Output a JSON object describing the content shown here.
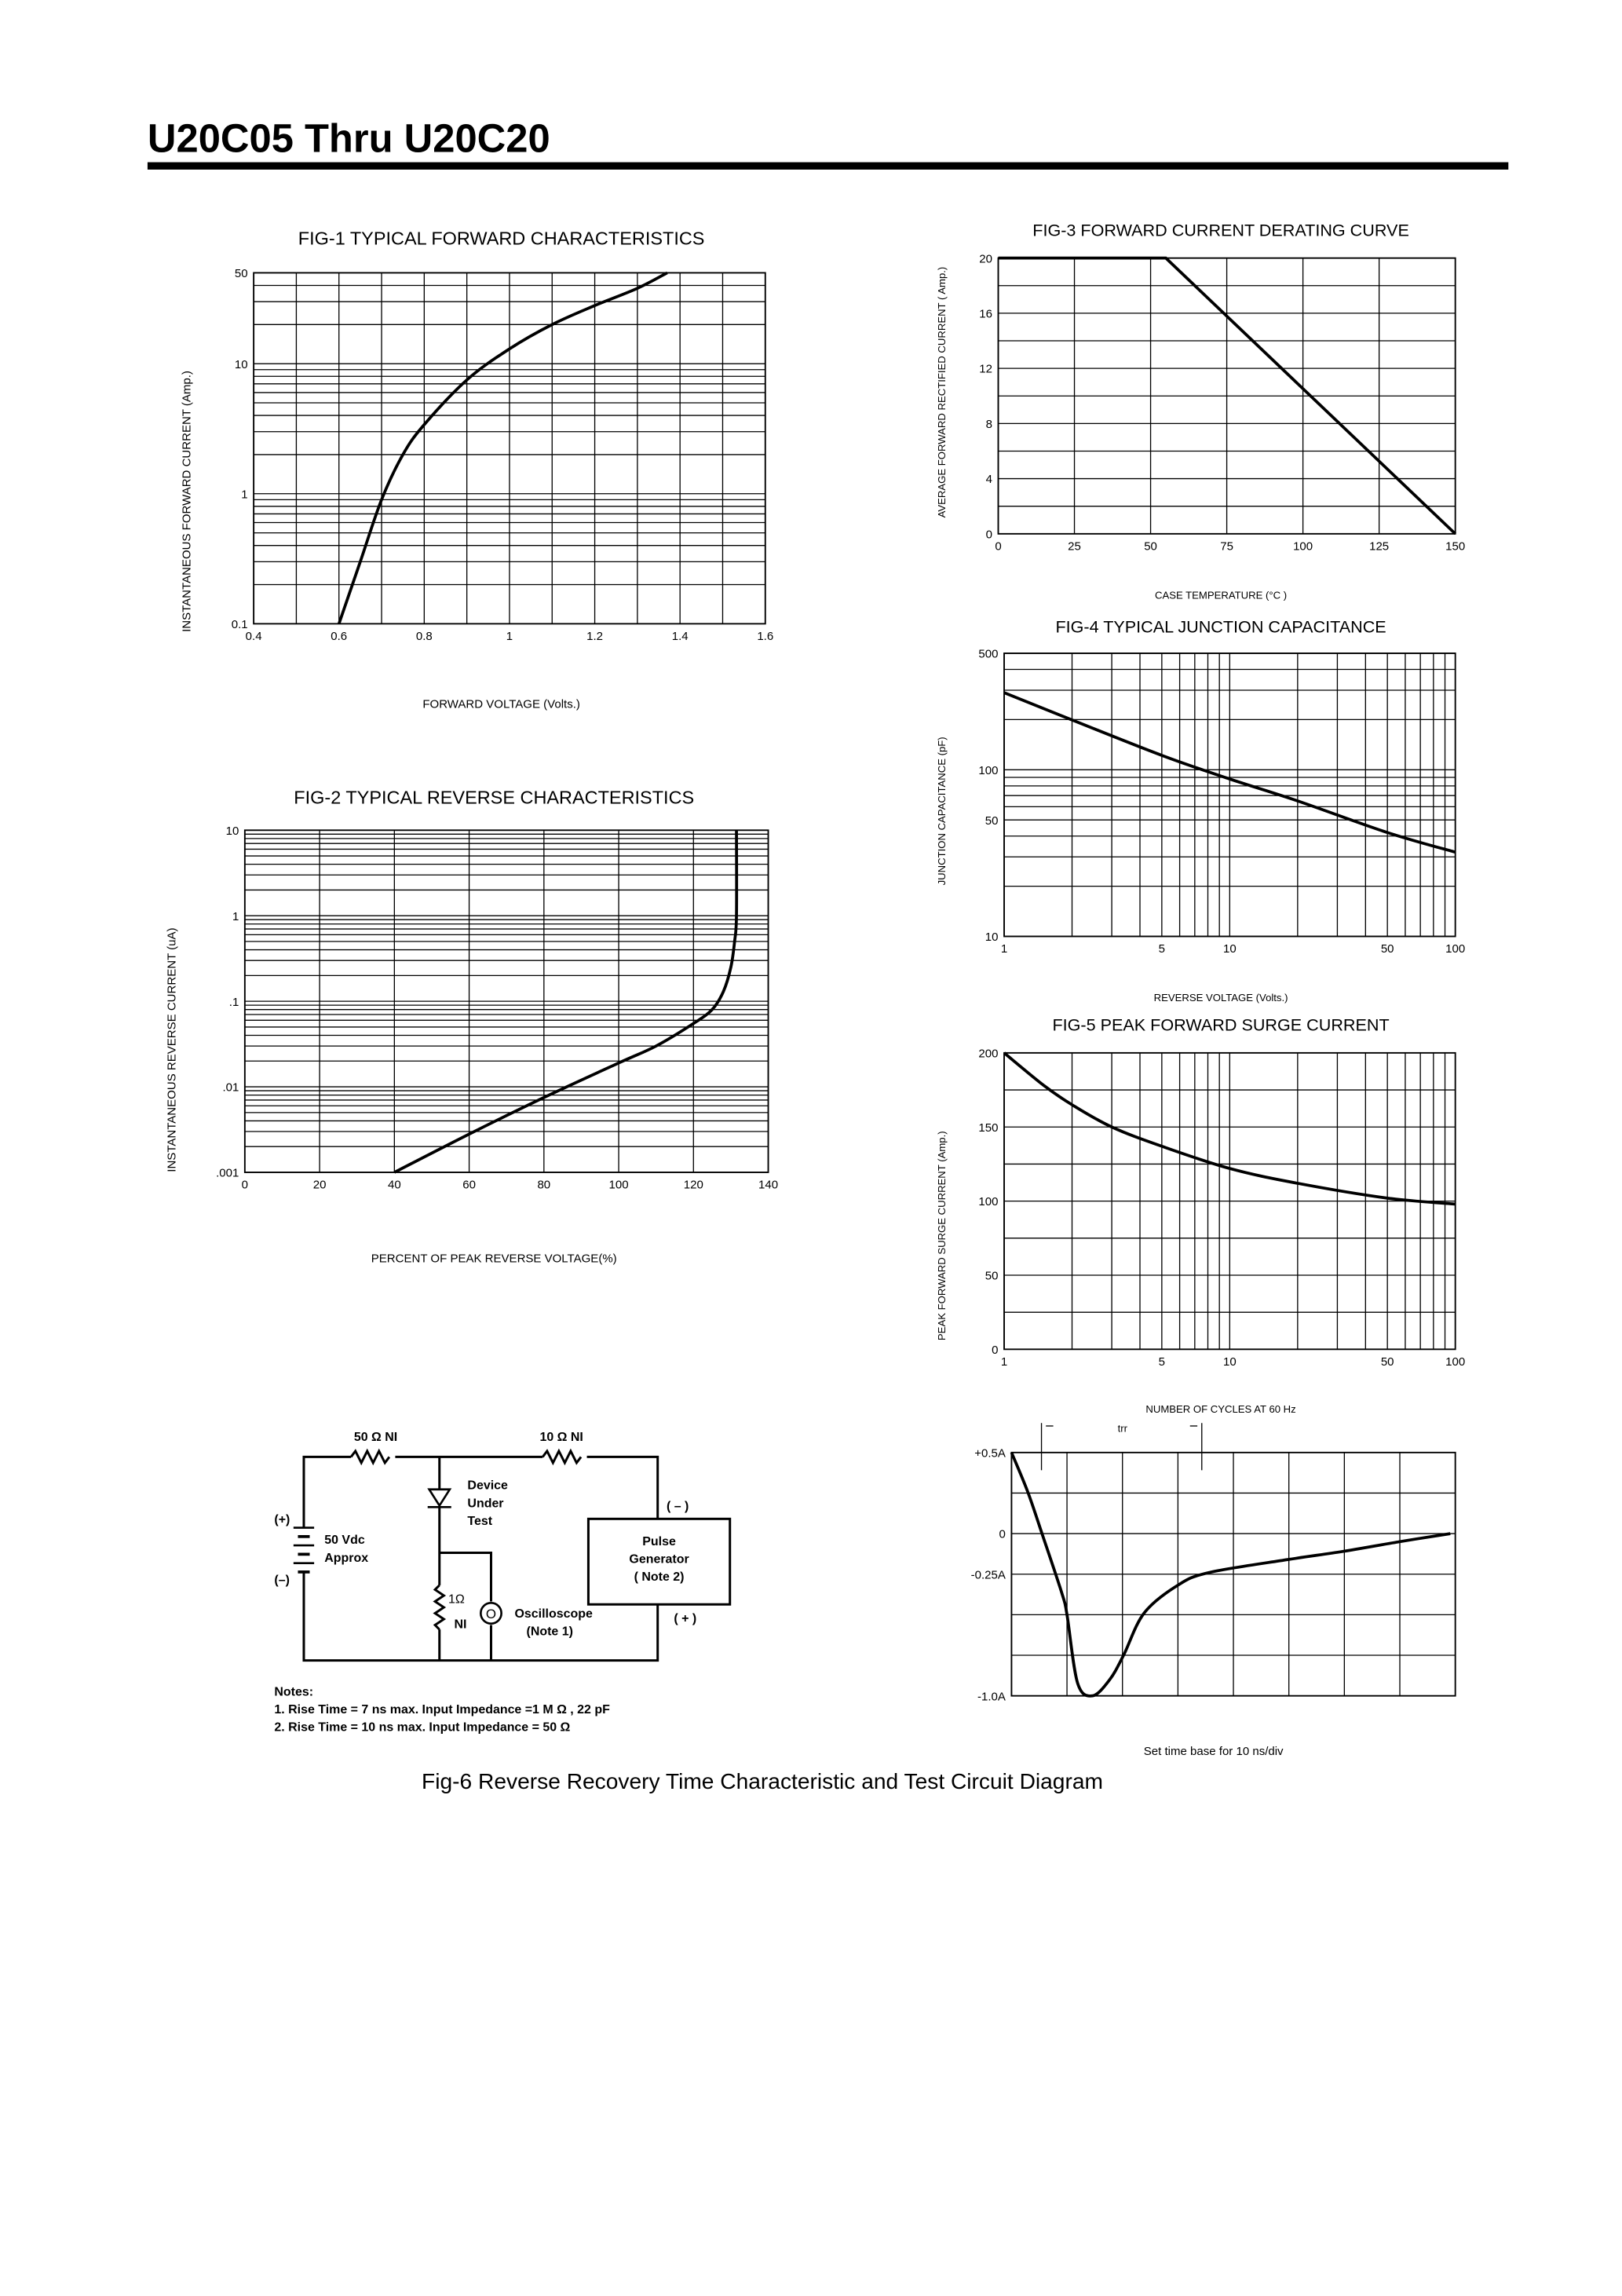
{
  "header": {
    "title": "U20C05 Thru U20C20"
  },
  "chart_data": [
    {
      "type": "line",
      "title": "FIG-1 TYPICAL FORWARD CHARACTERISTICS",
      "xlabel": "FORWARD VOLTAGE (Volts.)",
      "ylabel": "INSTANTANEOUS FORWARD CURRENT (Amp.)",
      "xlim": [
        0.4,
        1.6
      ],
      "ylim": [
        0.1,
        50
      ],
      "yscale": "log",
      "grid": true,
      "x_ticks": [
        {
          "v": 0.4,
          "label": "0.4"
        },
        {
          "v": 0.6,
          "label": "0.6"
        },
        {
          "v": 0.8,
          "label": "0.8"
        },
        {
          "v": 1.0,
          "label": "1"
        },
        {
          "v": 1.2,
          "label": "1.2"
        },
        {
          "v": 1.4,
          "label": "1.4"
        },
        {
          "v": 1.6,
          "label": "1.6"
        }
      ],
      "y_ticks": [
        {
          "v": 50,
          "label": "50"
        },
        {
          "v": 10,
          "label": "10"
        },
        {
          "v": 1,
          "label": "1"
        },
        {
          "v": 0.1,
          "label": "0.1"
        }
      ],
      "x": [
        0.6,
        0.65,
        0.7,
        0.75,
        0.8,
        0.9,
        1.0,
        1.1,
        1.2,
        1.3,
        1.37
      ],
      "y": [
        0.1,
        0.3,
        0.9,
        2.0,
        3.4,
        7.5,
        13,
        20,
        28,
        38,
        50
      ]
    },
    {
      "type": "line",
      "title": "FIG-2 TYPICAL REVERSE CHARACTERISTICS",
      "xlabel": "PERCENT OF PEAK REVERSE VOLTAGE(%)",
      "ylabel": "INSTANTANEOUS REVERSE CURRENT (uA)",
      "xlim": [
        0,
        140
      ],
      "ylim": [
        0.001,
        10
      ],
      "yscale": "log",
      "grid": true,
      "x_ticks": [
        {
          "v": 0,
          "label": "0"
        },
        {
          "v": 20,
          "label": "20"
        },
        {
          "v": 40,
          "label": "40"
        },
        {
          "v": 60,
          "label": "60"
        },
        {
          "v": 80,
          "label": "80"
        },
        {
          "v": 100,
          "label": "100"
        },
        {
          "v": 120,
          "label": "120"
        },
        {
          "v": 140,
          "label": "140"
        }
      ],
      "y_ticks": [
        {
          "v": 10,
          "label": "10"
        },
        {
          "v": 1,
          "label": "1"
        },
        {
          "v": 0.1,
          "label": ".1"
        },
        {
          "v": 0.01,
          "label": ".01"
        },
        {
          "v": 0.001,
          "label": ".001"
        }
      ],
      "x": [
        40,
        60,
        80,
        100,
        110,
        120,
        125,
        128,
        130,
        131,
        131.5,
        131.5
      ],
      "y": [
        0.001,
        0.0028,
        0.0075,
        0.019,
        0.03,
        0.055,
        0.08,
        0.13,
        0.25,
        0.5,
        1,
        10
      ]
    },
    {
      "type": "line",
      "title": "FIG-3 FORWARD CURRENT DERATING CURVE",
      "xlabel": "CASE TEMPERATURE (°C )",
      "ylabel": "AVERAGE FORWARD RECTIFIED CURRENT ( Amp.)",
      "xlim": [
        0,
        150
      ],
      "ylim": [
        0,
        20
      ],
      "grid": true,
      "x_ticks": [
        {
          "v": 0,
          "label": "0"
        },
        {
          "v": 25,
          "label": "25"
        },
        {
          "v": 50,
          "label": "50"
        },
        {
          "v": 75,
          "label": "75"
        },
        {
          "v": 100,
          "label": "100"
        },
        {
          "v": 125,
          "label": "125"
        },
        {
          "v": 150,
          "label": "150"
        }
      ],
      "y_ticks": [
        {
          "v": 20,
          "label": "20"
        },
        {
          "v": 16,
          "label": "16"
        },
        {
          "v": 12,
          "label": "12"
        },
        {
          "v": 8,
          "label": "8"
        },
        {
          "v": 4,
          "label": "4"
        },
        {
          "v": 0,
          "label": "0"
        }
      ],
      "x": [
        0,
        55,
        150
      ],
      "y": [
        20,
        20,
        0
      ]
    },
    {
      "type": "line",
      "title": "FIG-4 TYPICAL JUNCTION CAPACITANCE",
      "xlabel": "REVERSE VOLTAGE (Volts.)",
      "ylabel": "JUNCTION CAPACITANCE (pF)",
      "xlim": [
        1,
        100
      ],
      "ylim": [
        10,
        500
      ],
      "xscale": "log",
      "yscale": "log",
      "grid": true,
      "x_ticks": [
        {
          "v": 1,
          "label": "1"
        },
        {
          "v": 5,
          "label": "5"
        },
        {
          "v": 10,
          "label": "10"
        },
        {
          "v": 50,
          "label": "50"
        },
        {
          "v": 100,
          "label": "100"
        }
      ],
      "y_ticks": [
        {
          "v": 500,
          "label": "500"
        },
        {
          "v": 100,
          "label": "100"
        },
        {
          "v": 50,
          "label": "50"
        },
        {
          "v": 10,
          "label": "10"
        }
      ],
      "x": [
        1,
        2,
        5,
        10,
        20,
        50,
        100
      ],
      "y": [
        290,
        199,
        122,
        88,
        65,
        42,
        32
      ]
    },
    {
      "type": "line",
      "title": "FIG-5 PEAK FORWARD SURGE CURRENT",
      "xlabel": "NUMBER OF CYCLES AT 60 Hz",
      "ylabel": "PEAK FORWARD SURGE CURRENT (Amp.)",
      "xlim": [
        1,
        100
      ],
      "ylim": [
        0,
        200
      ],
      "xscale": "log",
      "grid": true,
      "x_ticks": [
        {
          "v": 1,
          "label": "1"
        },
        {
          "v": 5,
          "label": "5"
        },
        {
          "v": 10,
          "label": "10"
        },
        {
          "v": 50,
          "label": "50"
        },
        {
          "v": 100,
          "label": "100"
        }
      ],
      "y_ticks": [
        {
          "v": 200,
          "label": "200"
        },
        {
          "v": 150,
          "label": "150"
        },
        {
          "v": 100,
          "label": "100"
        },
        {
          "v": 50,
          "label": "50"
        },
        {
          "v": 0,
          "label": "0"
        }
      ],
      "x": [
        1,
        1.5,
        2,
        3,
        5,
        10,
        20,
        50,
        100
      ],
      "y": [
        200,
        178,
        165,
        150,
        137,
        122,
        112,
        102,
        98
      ]
    },
    {
      "type": "line",
      "title": "Fig-6 Reverse Recovery Time Characteristic and Test Circuit Diagram",
      "xlabel": "Set time base for 10  ns/div",
      "xlim": [
        0,
        80
      ],
      "ylim": [
        -1.0,
        0.5
      ],
      "grid": true,
      "trr_label": "trr",
      "trr_range": [
        5.4,
        34.3
      ],
      "y_ticks": [
        {
          "v": 0.5,
          "label": "+0.5A"
        },
        {
          "v": 0,
          "label": "0"
        },
        {
          "v": -0.25,
          "label": "-0.25A"
        },
        {
          "v": -1.0,
          "label": "-1.0A"
        }
      ],
      "x": [
        0,
        2.9,
        5.5,
        9.1,
        10,
        11.9,
        14.6,
        17.7,
        20.2,
        23.9,
        29.9,
        35.6,
        49.8,
        59.7,
        69.9,
        79.1
      ],
      "y": [
        0.5,
        0.26,
        0,
        -0.37,
        -0.5,
        -0.92,
        -1.0,
        -0.9,
        -0.75,
        -0.49,
        -0.32,
        -0.24,
        -0.16,
        -0.11,
        -0.05,
        0.0
      ]
    }
  ],
  "circuit": {
    "r1_label": "50 Ω  NI",
    "r2_label": "10 Ω  NI",
    "dut_lines": [
      "Device",
      "Under",
      "Test"
    ],
    "battery_plus": "(+)",
    "battery_minus": "(–)",
    "battery_lines": [
      "50 Vdc",
      "Approx"
    ],
    "pulse_lines": [
      "Pulse",
      "Generator",
      "( Note 2)"
    ],
    "pulse_minus": "( – )",
    "pulse_plus": "( + )",
    "r3_label": "1Ω",
    "r3_ni": "NI",
    "scope_symbol": "O",
    "scope_lines": [
      "Oscilloscope",
      "(Note 1)"
    ],
    "notes_title": "Notes:",
    "notes": [
      "1. Rise Time = 7 ns max. Input Impedance =1 M Ω , 22 pF",
      "2. Rise Time = 10 ns max. Input Impedance = 50 Ω"
    ]
  }
}
